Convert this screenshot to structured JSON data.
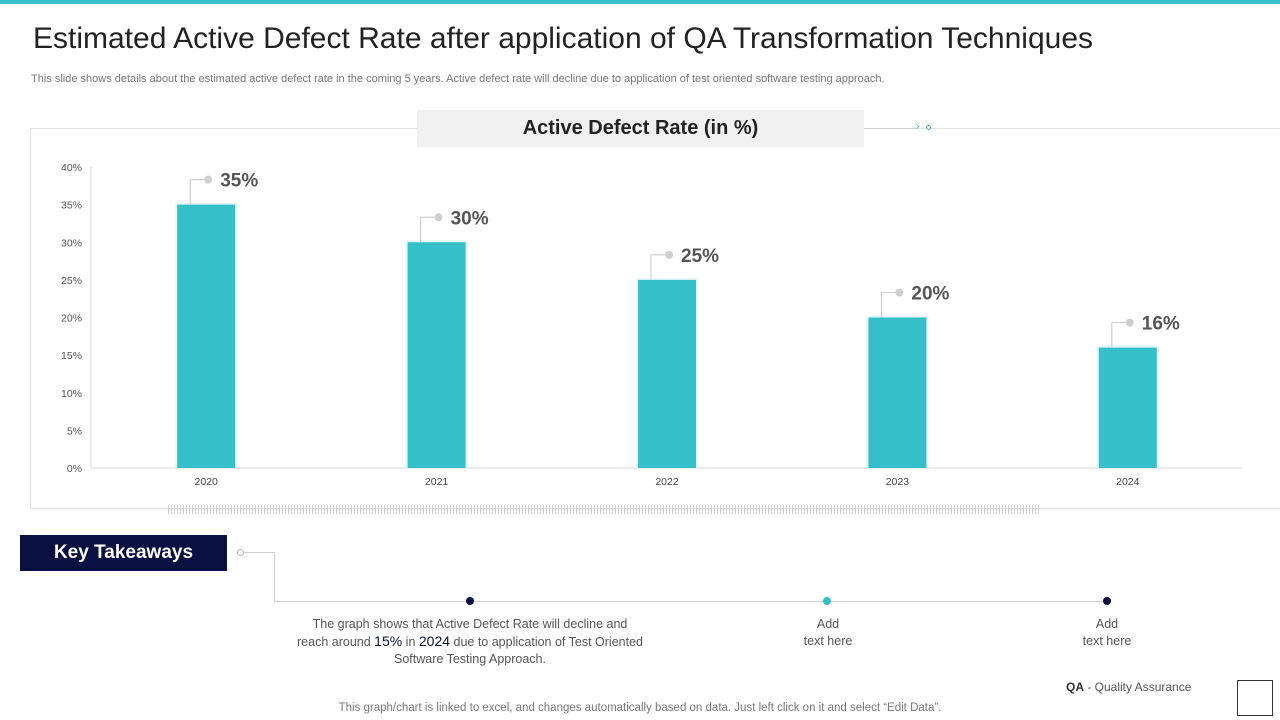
{
  "page": {
    "title": "Estimated Active Defect Rate after application of QA Transformation Techniques",
    "subtitle": "This slide shows details about the estimated  active defect rate in the coming 5 years. Active  defect rate will decline due to application of test oriented software testing approach.",
    "accent_color": "#35c0c9",
    "navy_color": "#0a1142"
  },
  "chart_data": {
    "type": "bar",
    "title": "Active Defect Rate (in %)",
    "categories": [
      "2020",
      "2021",
      "2022",
      "2023",
      "2024"
    ],
    "values": [
      35,
      30,
      25,
      20,
      16
    ],
    "data_labels": [
      "35%",
      "30%",
      "25%",
      "20%",
      "16%"
    ],
    "yticks": [
      "0%",
      "5%",
      "10%",
      "15%",
      "20%",
      "25%",
      "30%",
      "35%",
      "40%"
    ],
    "ylim": [
      0,
      40
    ],
    "xlabel": "",
    "ylabel": "",
    "grid": false,
    "bar_color": "#35c0c9"
  },
  "takeaways": {
    "label": "Key Takeaways",
    "items": [
      {
        "pre": "The graph shows that Active Defect Rate will decline and reach around ",
        "value": "15%",
        "mid": " in ",
        "year": "2024",
        "post": " due to application of Test Oriented Software Testing Approach.",
        "dot_color": "#0a1142"
      },
      {
        "line1": "Add",
        "line2": "text here",
        "dot_color": "#35c0c9"
      },
      {
        "line1": "Add",
        "line2": "text here",
        "dot_color": "#0a1142"
      }
    ]
  },
  "footer": {
    "qa_abbr": "QA",
    "qa_full": " - Quality Assurance",
    "note": "This graph/chart is linked to excel, and changes automatically based on data. Just left click on it and select “Edit Data”."
  }
}
